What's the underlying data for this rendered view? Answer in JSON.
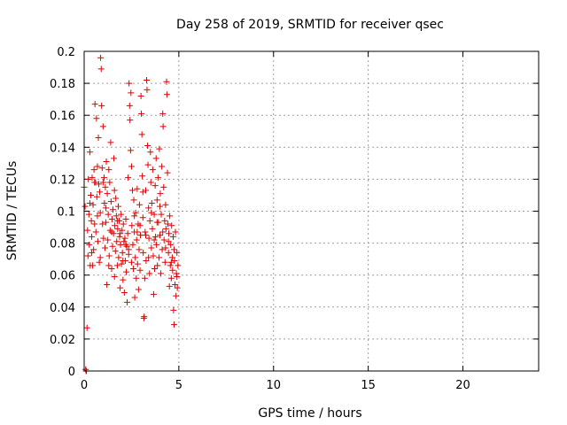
{
  "chart_data": {
    "type": "scatter",
    "title": "Day 258 of 2019, SRMTID for receiver qsec",
    "xlabel": "GPS time / hours",
    "ylabel": "SRMTID / TECUs",
    "xlim": [
      0,
      24
    ],
    "ylim": [
      0,
      0.2
    ],
    "grid": true,
    "legend": "none",
    "marker": "plus",
    "color": "#e00000",
    "x_ticks": [
      "0",
      "5",
      "10",
      "15",
      "20"
    ],
    "y_ticks": [
      "0",
      "0.02",
      "0.04",
      "0.06",
      "0.08",
      "0.1",
      "0.12",
      "0.14",
      "0.16",
      "0.18",
      "0.2"
    ],
    "series": [
      {
        "points": [
          [
            0.0,
            0.115
          ],
          [
            0.05,
            0.103
          ],
          [
            0.08,
            0.001
          ],
          [
            0.1,
            0.0
          ],
          [
            0.12,
            0.0
          ],
          [
            0.15,
            0.027
          ],
          [
            0.18,
            0.088
          ],
          [
            0.2,
            0.072
          ],
          [
            0.22,
            0.12
          ],
          [
            0.25,
            0.098
          ],
          [
            0.27,
            0.079
          ],
          [
            0.3,
            0.137
          ],
          [
            0.32,
            0.066
          ],
          [
            0.35,
            0.11
          ],
          [
            0.38,
            0.094
          ],
          [
            0.4,
            0.084
          ],
          [
            0.42,
            0.121
          ],
          [
            0.45,
            0.066
          ],
          [
            0.47,
            0.104
          ],
          [
            0.5,
            0.076
          ],
          [
            0.52,
            0.126
          ],
          [
            0.55,
            0.092
          ],
          [
            0.57,
            0.167
          ],
          [
            0.6,
            0.118
          ],
          [
            0.62,
            0.087
          ],
          [
            0.65,
            0.158
          ],
          [
            0.67,
            0.109
          ],
          [
            0.7,
            0.097
          ],
          [
            0.72,
            0.081
          ],
          [
            0.75,
            0.146
          ],
          [
            0.77,
            0.117
          ],
          [
            0.8,
            0.068
          ],
          [
            0.82,
            0.112
          ],
          [
            0.85,
            0.099
          ],
          [
            0.87,
            0.196
          ],
          [
            0.9,
            0.189
          ],
          [
            0.92,
            0.166
          ],
          [
            0.95,
            0.127
          ],
          [
            0.97,
            0.092
          ],
          [
            1.0,
            0.153
          ],
          [
            1.02,
            0.083
          ],
          [
            1.05,
            0.121
          ],
          [
            1.07,
            0.105
          ],
          [
            1.1,
            0.077
          ],
          [
            1.12,
            0.115
          ],
          [
            1.15,
            0.093
          ],
          [
            1.17,
            0.131
          ],
          [
            1.2,
            0.054
          ],
          [
            1.22,
            0.111
          ],
          [
            1.25,
            0.082
          ],
          [
            1.27,
            0.098
          ],
          [
            1.3,
            0.126
          ],
          [
            1.32,
            0.072
          ],
          [
            1.35,
            0.118
          ],
          [
            1.37,
            0.088
          ],
          [
            1.4,
            0.143
          ],
          [
            1.42,
            0.106
          ],
          [
            1.45,
            0.064
          ],
          [
            1.47,
            0.095
          ],
          [
            1.5,
            0.078
          ],
          [
            1.52,
            0.101
          ],
          [
            1.55,
            0.086
          ],
          [
            1.57,
            0.133
          ],
          [
            1.6,
            0.059
          ],
          [
            1.62,
            0.091
          ],
          [
            1.65,
            0.075
          ],
          [
            1.67,
            0.108
          ],
          [
            1.7,
            0.097
          ],
          [
            1.72,
            0.081
          ],
          [
            1.75,
            0.066
          ],
          [
            1.77,
            0.089
          ],
          [
            1.8,
            0.103
          ],
          [
            1.82,
            0.071
          ],
          [
            1.85,
            0.094
          ],
          [
            1.87,
            0.084
          ],
          [
            1.9,
            0.052
          ],
          [
            1.92,
            0.079
          ],
          [
            1.95,
            0.098
          ],
          [
            1.97,
            0.067
          ],
          [
            2.0,
            0.088
          ],
          [
            2.02,
            0.074
          ],
          [
            2.05,
            0.057
          ],
          [
            2.07,
            0.092
          ],
          [
            2.1,
            0.081
          ],
          [
            2.12,
            0.049
          ],
          [
            2.15,
            0.083
          ],
          [
            2.17,
            0.069
          ],
          [
            2.2,
            0.095
          ],
          [
            2.22,
            0.062
          ],
          [
            2.25,
            0.078
          ],
          [
            2.27,
            0.043
          ],
          [
            2.3,
            0.086
          ],
          [
            2.32,
            0.121
          ],
          [
            2.35,
            0.073
          ],
          [
            2.37,
            0.18
          ],
          [
            2.4,
            0.166
          ],
          [
            2.42,
            0.157
          ],
          [
            2.45,
            0.138
          ],
          [
            2.47,
            0.174
          ],
          [
            2.5,
            0.128
          ],
          [
            2.52,
            0.091
          ],
          [
            2.55,
            0.113
          ],
          [
            2.57,
            0.079
          ],
          [
            2.6,
            0.064
          ],
          [
            2.62,
            0.107
          ],
          [
            2.65,
            0.087
          ],
          [
            2.67,
            0.046
          ],
          [
            2.7,
            0.071
          ],
          [
            2.72,
            0.099
          ],
          [
            2.75,
            0.058
          ],
          [
            2.77,
            0.082
          ],
          [
            2.8,
            0.114
          ],
          [
            2.82,
            0.067
          ],
          [
            2.85,
            0.092
          ],
          [
            2.87,
            0.051
          ],
          [
            2.9,
            0.076
          ],
          [
            2.92,
            0.104
          ],
          [
            2.95,
            0.063
          ],
          [
            2.97,
            0.085
          ],
          [
            3.0,
            0.172
          ],
          [
            3.02,
            0.161
          ],
          [
            3.05,
            0.148
          ],
          [
            3.07,
            0.122
          ],
          [
            3.1,
            0.096
          ],
          [
            3.12,
            0.074
          ],
          [
            3.15,
            0.033
          ],
          [
            3.17,
            0.034
          ],
          [
            3.2,
            0.058
          ],
          [
            3.22,
            0.087
          ],
          [
            3.25,
            0.113
          ],
          [
            3.27,
            0.069
          ],
          [
            3.3,
            0.182
          ],
          [
            3.32,
            0.176
          ],
          [
            3.35,
            0.141
          ],
          [
            3.37,
            0.129
          ],
          [
            3.4,
            0.102
          ],
          [
            3.42,
            0.083
          ],
          [
            3.45,
            0.061
          ],
          [
            3.47,
            0.094
          ],
          [
            3.5,
            0.137
          ],
          [
            3.52,
            0.118
          ],
          [
            3.55,
            0.077
          ],
          [
            3.57,
            0.105
          ],
          [
            3.6,
            0.089
          ],
          [
            3.62,
            0.126
          ],
          [
            3.65,
            0.072
          ],
          [
            3.67,
            0.048
          ],
          [
            3.7,
            0.098
          ],
          [
            3.72,
            0.064
          ],
          [
            3.75,
            0.116
          ],
          [
            3.77,
            0.084
          ],
          [
            3.8,
            0.133
          ],
          [
            3.82,
            0.079
          ],
          [
            3.85,
            0.107
          ],
          [
            3.87,
            0.066
          ],
          [
            3.9,
            0.121
          ],
          [
            3.92,
            0.093
          ],
          [
            3.95,
            0.071
          ],
          [
            3.97,
            0.139
          ],
          [
            4.0,
            0.085
          ],
          [
            4.02,
            0.111
          ],
          [
            4.05,
            0.061
          ],
          [
            4.07,
            0.098
          ],
          [
            4.1,
            0.128
          ],
          [
            4.12,
            0.076
          ],
          [
            4.15,
            0.161
          ],
          [
            4.17,
            0.153
          ],
          [
            4.2,
            0.115
          ],
          [
            4.22,
            0.082
          ],
          [
            4.25,
            0.094
          ],
          [
            4.27,
            0.068
          ],
          [
            4.3,
            0.104
          ],
          [
            4.32,
            0.089
          ],
          [
            4.35,
            0.181
          ],
          [
            4.37,
            0.173
          ],
          [
            4.4,
            0.124
          ],
          [
            4.42,
            0.092
          ],
          [
            4.45,
            0.074
          ],
          [
            4.47,
            0.086
          ],
          [
            4.5,
            0.053
          ],
          [
            4.52,
            0.097
          ],
          [
            4.55,
            0.066
          ],
          [
            4.57,
            0.079
          ],
          [
            4.6,
            0.058
          ],
          [
            4.62,
            0.091
          ],
          [
            4.65,
            0.071
          ],
          [
            4.67,
            0.063
          ],
          [
            4.7,
            0.084
          ],
          [
            4.72,
            0.038
          ],
          [
            4.75,
            0.029
          ],
          [
            4.77,
            0.069
          ],
          [
            4.8,
            0.054
          ],
          [
            4.82,
            0.087
          ],
          [
            4.85,
            0.047
          ],
          [
            4.87,
            0.061
          ],
          [
            4.9,
            0.074
          ],
          [
            4.92,
            0.052
          ],
          [
            4.95,
            0.066
          ],
          [
            0.3,
            0.105
          ],
          [
            0.55,
            0.118
          ],
          [
            0.85,
            0.071
          ],
          [
            1.15,
            0.102
          ],
          [
            1.45,
            0.087
          ],
          [
            1.75,
            0.094
          ],
          [
            2.05,
            0.069
          ],
          [
            2.35,
            0.076
          ],
          [
            2.65,
            0.097
          ],
          [
            2.95,
            0.091
          ],
          [
            3.25,
            0.085
          ],
          [
            3.55,
            0.099
          ],
          [
            3.85,
            0.093
          ],
          [
            4.15,
            0.087
          ],
          [
            4.45,
            0.081
          ],
          [
            4.75,
            0.076
          ],
          [
            0.4,
            0.074
          ],
          [
            0.7,
            0.128
          ],
          [
            1.0,
            0.118
          ],
          [
            1.3,
            0.066
          ],
          [
            1.6,
            0.113
          ],
          [
            1.9,
            0.086
          ],
          [
            2.2,
            0.079
          ],
          [
            2.5,
            0.068
          ],
          [
            2.8,
            0.087
          ],
          [
            3.1,
            0.112
          ],
          [
            3.4,
            0.071
          ],
          [
            3.7,
            0.082
          ],
          [
            4.0,
            0.103
          ],
          [
            4.3,
            0.077
          ],
          [
            4.6,
            0.068
          ],
          [
            4.9,
            0.059
          ]
        ]
      }
    ]
  }
}
